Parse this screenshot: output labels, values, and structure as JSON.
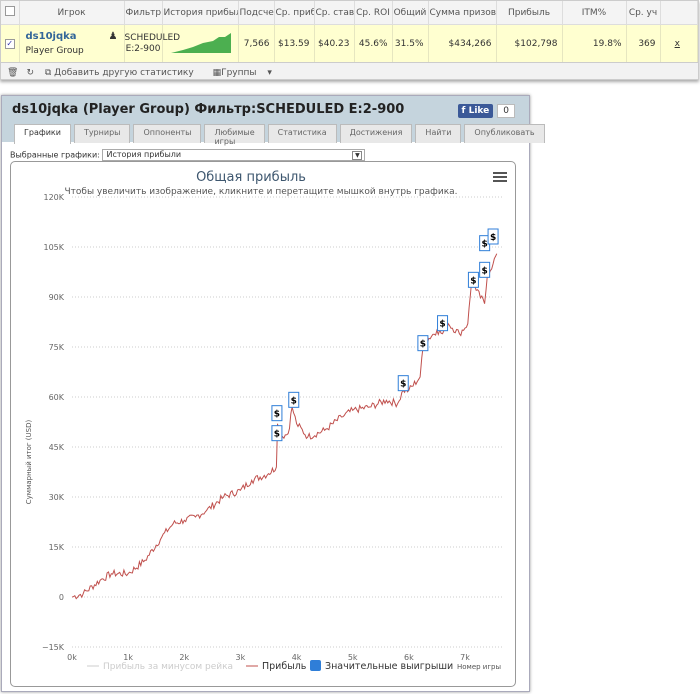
{
  "table": {
    "headers": [
      "",
      "Игрок",
      "Фильтр",
      "История прибыл",
      "Подсче",
      "Ср. приб",
      "Ср. став",
      "Ср. ROI",
      "Общий",
      "Сумма призов",
      "Прибыль",
      "ITM%",
      "Ср. уч",
      ""
    ],
    "row": {
      "player": "ds10jqka",
      "group": "Player Group",
      "filter": "SCHEDULED E:2-900",
      "count": "7,566",
      "avg_profit": "$13.59",
      "avg_stake": "$40.23",
      "avg_roi": "45.6%",
      "total": "31.5%",
      "prizes": "$434,266",
      "profit": "$102,798",
      "itm": "19.8%",
      "avg_field": "369",
      "remove": "x"
    }
  },
  "toolbar": {
    "add_stat": "Добавить другую статистику",
    "groups": "Группы"
  },
  "panel": {
    "title": "ds10jqka (Player Group) Фильтр:SCHEDULED E:2-900",
    "like": "Like",
    "like_count": "0",
    "tabs": [
      "Графики",
      "Турниры",
      "Оппоненты",
      "Любимые игры",
      "Статистика",
      "Достижения",
      "Найти",
      "Опубликовать"
    ],
    "selected_label": "Выбранные графики:",
    "selected_value": "История прибыли"
  },
  "chart_data": {
    "type": "line",
    "title": "Общая прибыль",
    "subtitle": "Чтобы увеличить изображение, кликните и перетащите мышкой внутрь графика.",
    "ylabel": "Суммарный итог (USD)",
    "xlabel": "Номер игры",
    "ylim": [
      -15000,
      120000
    ],
    "xlim": [
      0,
      7566
    ],
    "yticks": [
      "120K",
      "105K",
      "90K",
      "75K",
      "60K",
      "45K",
      "30K",
      "15K",
      "0",
      "−15K"
    ],
    "xticks": [
      "0k",
      "1k",
      "2k",
      "3k",
      "4k",
      "5k",
      "6k",
      "7k"
    ],
    "legend": [
      "Прибыль за минусом рейка",
      "Прибыль",
      "Значительные выигрыши"
    ],
    "colors": {
      "profit": "#c0504d",
      "rake": "#cccccc",
      "wins": "#2f7ed8"
    },
    "series": [
      {
        "name": "Прибыль",
        "x": [
          0,
          200,
          500,
          700,
          1000,
          1300,
          1600,
          1800,
          2000,
          2200,
          2400,
          2700,
          3000,
          3200,
          3500,
          3640,
          3660,
          3700,
          3850,
          3920,
          4000,
          4200,
          4500,
          4800,
          5000,
          5300,
          5600,
          5800,
          5900,
          6000,
          6200,
          6260,
          6500,
          6600,
          6700,
          6900,
          7050,
          7120,
          7200,
          7350,
          7400,
          7500,
          7566
        ],
        "y": [
          0,
          1000,
          5000,
          7000,
          7000,
          11000,
          18000,
          22000,
          23000,
          24000,
          26000,
          30000,
          32000,
          35000,
          37000,
          39000,
          52000,
          48000,
          49000,
          57000,
          52000,
          48000,
          50000,
          54000,
          56000,
          57000,
          59000,
          58000,
          62000,
          62000,
          66000,
          76000,
          80000,
          79000,
          82000,
          79000,
          82000,
          95000,
          92000,
          88000,
          97000,
          100000,
          103000
        ]
      }
    ],
    "big_wins": [
      {
        "x": 3650,
        "y": 55000
      },
      {
        "x": 3650,
        "y": 49000
      },
      {
        "x": 3950,
        "y": 59000
      },
      {
        "x": 5900,
        "y": 64000
      },
      {
        "x": 6250,
        "y": 76000
      },
      {
        "x": 6600,
        "y": 82000
      },
      {
        "x": 7150,
        "y": 95000
      },
      {
        "x": 7350,
        "y": 98000
      },
      {
        "x": 7350,
        "y": 106000
      },
      {
        "x": 7500,
        "y": 108000
      }
    ]
  }
}
